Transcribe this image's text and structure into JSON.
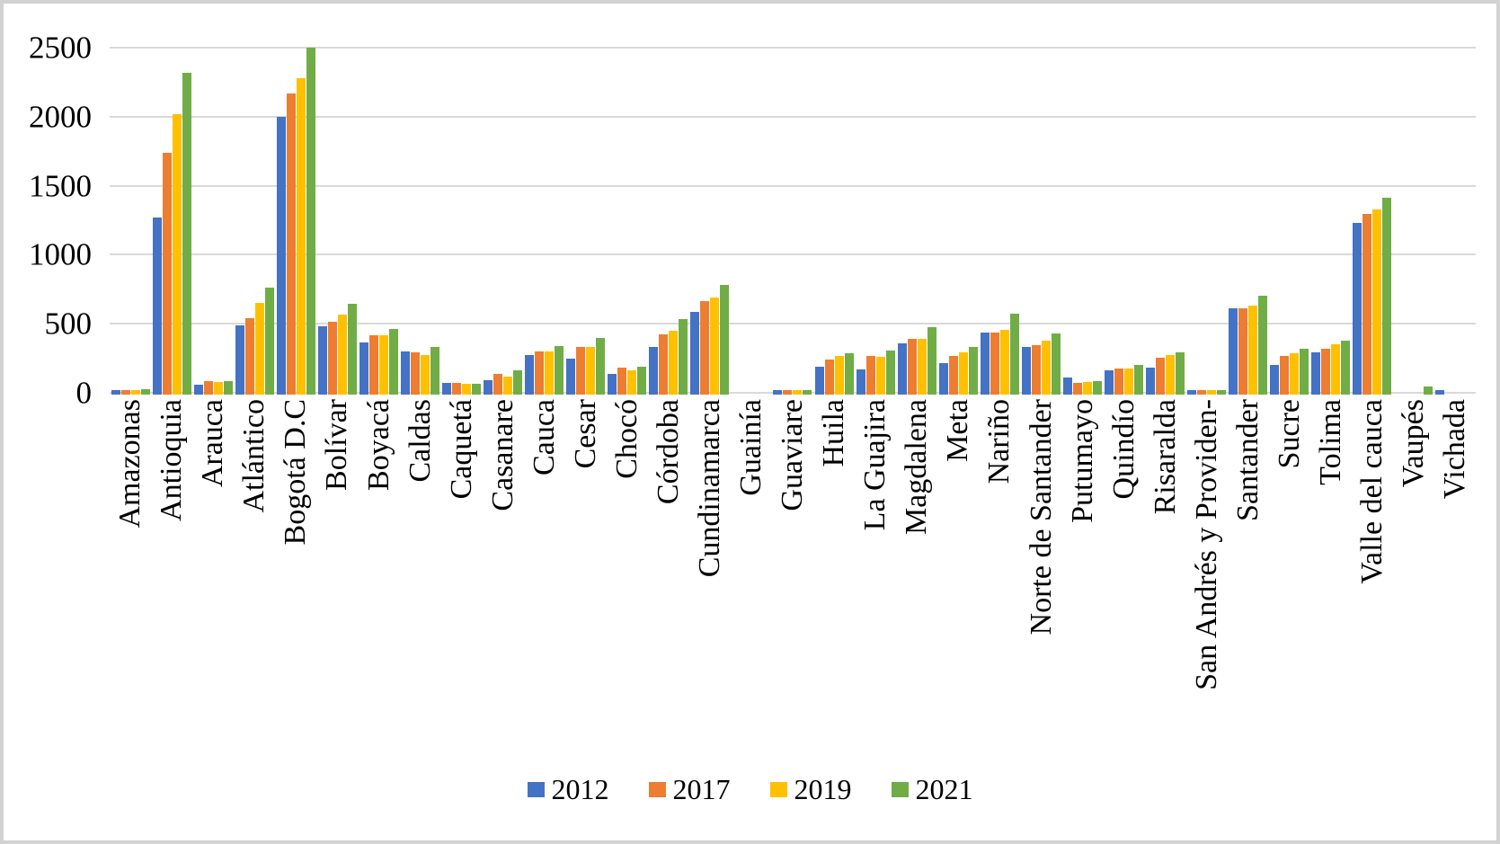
{
  "figure": {
    "background": "#ffffff",
    "border_color": "#d2d2d2",
    "gridline_color": "#d9d9d9",
    "text_color": "#000000"
  },
  "chart_data": {
    "type": "bar",
    "title": "",
    "xlabel": "",
    "ylabel": "",
    "ylim": [
      0,
      2500
    ],
    "yticks": [
      0,
      500,
      1000,
      1500,
      2000,
      2500
    ],
    "grid": true,
    "legend_position": "bottom",
    "categories": [
      "Amazonas",
      "Antioquia",
      "Arauca",
      "Atlántico",
      "Bogotá D.C",
      "Bolívar",
      "Boyacá",
      "Caldas",
      "Caquetá",
      "Casanare",
      "Cauca",
      "Cesar",
      "Chocó",
      "Córdoba",
      "Cundinamarca",
      "Guainía",
      "Guaviare",
      "Huila",
      "La Guajira",
      "Magdalena",
      "Meta",
      "Nariño",
      "Norte de Santander",
      "Putumayo",
      "Quindío",
      "Risaralda",
      "San Andrés y Providen-",
      "Santander",
      "Sucre",
      "Tolima",
      "Valle del cauca",
      "Vaupés",
      "Vichada"
    ],
    "series": [
      {
        "name": "2012",
        "color": "#4472C4",
        "values": [
          30,
          1280,
          70,
          500,
          2010,
          495,
          375,
          310,
          80,
          100,
          285,
          260,
          150,
          345,
          595,
          0,
          30,
          200,
          180,
          365,
          225,
          445,
          345,
          120,
          170,
          190,
          30,
          625,
          215,
          305,
          1240,
          0,
          30
        ]
      },
      {
        "name": "2017",
        "color": "#ED7D31",
        "values": [
          30,
          1750,
          95,
          550,
          2180,
          525,
          425,
          300,
          80,
          145,
          310,
          340,
          190,
          435,
          675,
          0,
          28,
          250,
          275,
          400,
          280,
          445,
          355,
          80,
          185,
          265,
          30,
          625,
          280,
          330,
          1305,
          0,
          0
        ]
      },
      {
        "name": "2019",
        "color": "#FFC000",
        "values": [
          30,
          2030,
          85,
          660,
          2290,
          575,
          425,
          285,
          78,
          130,
          310,
          340,
          175,
          460,
          700,
          0,
          28,
          275,
          270,
          400,
          300,
          465,
          385,
          90,
          185,
          285,
          30,
          640,
          295,
          360,
          1340,
          0,
          0
        ]
      },
      {
        "name": "2021",
        "color": "#70AD47",
        "values": [
          35,
          2330,
          95,
          770,
          2510,
          655,
          470,
          340,
          78,
          170,
          350,
          405,
          200,
          545,
          790,
          0,
          30,
          295,
          315,
          485,
          340,
          585,
          440,
          95,
          210,
          305,
          30,
          715,
          330,
          385,
          1420,
          55,
          0
        ]
      }
    ]
  }
}
